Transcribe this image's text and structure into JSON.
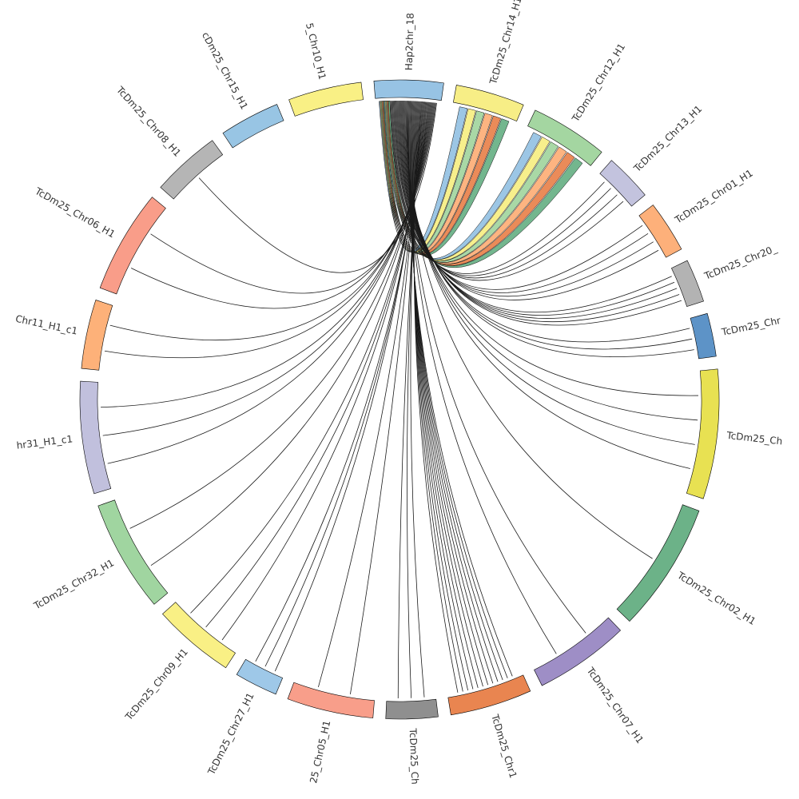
{
  "diagram": {
    "type": "circos",
    "source_chromosome": "Hap2chr_18",
    "segments": [
      {
        "name": "Hap2chr_18",
        "label": "Hap2chr_18",
        "color": "#97c3e4",
        "length": 1.6
      },
      {
        "name": "TcDm25_Chr14_H1",
        "label": "TcDm25_Chr14_H1",
        "color": "#f7ee86",
        "length": 1.6
      },
      {
        "name": "TcDm25_Chr12_H1",
        "label": "TcDm25_Chr12_H1",
        "color": "#a4d6a1",
        "length": 1.8
      },
      {
        "name": "TcDm25_Chr13_H1",
        "label": "TcDm25_Chr13_H1",
        "color": "#c3c3de",
        "length": 1.1
      },
      {
        "name": "TcDm25_Chr01_H1",
        "label": "TcDm25_Chr01_H1",
        "color": "#fdb07a",
        "length": 1.2
      },
      {
        "name": "TcDm25_Chr20_H1",
        "label": "TcDm25_Chr20_",
        "color": "#b3b3b3",
        "length": 1.0
      },
      {
        "name": "TcDm25_Chr_a",
        "label": "TcDm25_Chr",
        "color": "#5d93c7",
        "length": 1.0
      },
      {
        "name": "TcDm25_Chr_b",
        "label": "TcDm25_Ch",
        "color": "#e8e152",
        "length": 3.0
      },
      {
        "name": "TcDm25_Chr02_H1",
        "label": "TcDm25_Chr02_H1",
        "color": "#6cb288",
        "length": 3.0
      },
      {
        "name": "TcDm25_Chr07_H1",
        "label": "TcDm25_Chr07_H1",
        "color": "#9e8ec6",
        "length": 2.2
      },
      {
        "name": "TcDm25_Chr1x_H1",
        "label": "TcDm25_Chr1",
        "color": "#e98550",
        "length": 1.9
      },
      {
        "name": "TcDm25_Chr_c",
        "label": "TcDm25_Ch",
        "color": "#8f8f8f",
        "length": 1.2
      },
      {
        "name": "TcDm25_Chr05_H1",
        "label": "25_Chr05_H1",
        "color": "#f89e8a",
        "length": 2.0
      },
      {
        "name": "TcDm25_Chr27_H1",
        "label": "TcDm25_Chr27_H1",
        "color": "#9ec8e8",
        "length": 1.0
      },
      {
        "name": "TcDm25_Chr09_H1",
        "label": "TcDm25_Chr09_H1",
        "color": "#f9f085",
        "length": 1.9
      },
      {
        "name": "TcDm25_Chr32_H1",
        "label": "TcDm25_Chr32_H1",
        "color": "#a0d5a0",
        "length": 2.6
      },
      {
        "name": "TcDm25_Chr31_H1_c1",
        "label": "hr31_H1_c1",
        "color": "#c1c0dd",
        "length": 2.6
      },
      {
        "name": "TcDm25_Chr11_H1_c1",
        "label": "Chr11_H1_c1",
        "color": "#fdb179",
        "length": 1.6
      },
      {
        "name": "TcDm25_Chr06_H1",
        "label": "TcDm25_Chr06_H1",
        "color": "#f99d89",
        "length": 2.4
      },
      {
        "name": "TcDm25_Chr08_H1",
        "label": "TcDm25_Chr08_H1",
        "color": "#b5b5b5",
        "length": 1.6
      },
      {
        "name": "TcDm25_Chr15_H1",
        "label": "cDm25_Chr15_H1",
        "color": "#98c5e4",
        "length": 1.4
      },
      {
        "name": "TcDm25_Chr10_H1",
        "label": "5_Chr10_H1",
        "color": "#f9f085",
        "length": 1.7
      }
    ],
    "links": [
      {
        "target": "TcDm25_Chr14_H1",
        "count": 6,
        "style": "ribbon"
      },
      {
        "target": "TcDm25_Chr12_H1",
        "count": 6,
        "style": "ribbon"
      },
      {
        "target": "TcDm25_Chr13_H1",
        "count": 4,
        "style": "line"
      },
      {
        "target": "TcDm25_Chr01_H1",
        "count": 4,
        "style": "line"
      },
      {
        "target": "TcDm25_Chr20_H1",
        "count": 5,
        "style": "line"
      },
      {
        "target": "TcDm25_Chr_a",
        "count": 3,
        "style": "line"
      },
      {
        "target": "TcDm25_Chr_b",
        "count": 4,
        "style": "line"
      },
      {
        "target": "TcDm25_Chr02_H1",
        "count": 1,
        "style": "line"
      },
      {
        "target": "TcDm25_Chr07_H1",
        "count": 2,
        "style": "line"
      },
      {
        "target": "TcDm25_Chr1x_H1",
        "count": 12,
        "style": "line"
      },
      {
        "target": "TcDm25_Chr_c",
        "count": 3,
        "style": "line"
      },
      {
        "target": "TcDm25_Chr05_H1",
        "count": 2,
        "style": "line"
      },
      {
        "target": "TcDm25_Chr27_H1",
        "count": 3,
        "style": "line"
      },
      {
        "target": "TcDm25_Chr09_H1",
        "count": 3,
        "style": "line"
      },
      {
        "target": "TcDm25_Chr32_H1",
        "count": 2,
        "style": "line"
      },
      {
        "target": "TcDm25_Chr31_H1_c1",
        "count": 3,
        "style": "line"
      },
      {
        "target": "TcDm25_Chr11_H1_c1",
        "count": 2,
        "style": "line"
      },
      {
        "target": "TcDm25_Chr06_H1",
        "count": 2,
        "style": "line"
      },
      {
        "target": "TcDm25_Chr08_H1",
        "count": 1,
        "style": "line"
      }
    ],
    "link_palette": [
      "#97c3e4",
      "#f7ee86",
      "#a4d6a1",
      "#fdb07a",
      "#e98550",
      "#6cb288"
    ]
  }
}
